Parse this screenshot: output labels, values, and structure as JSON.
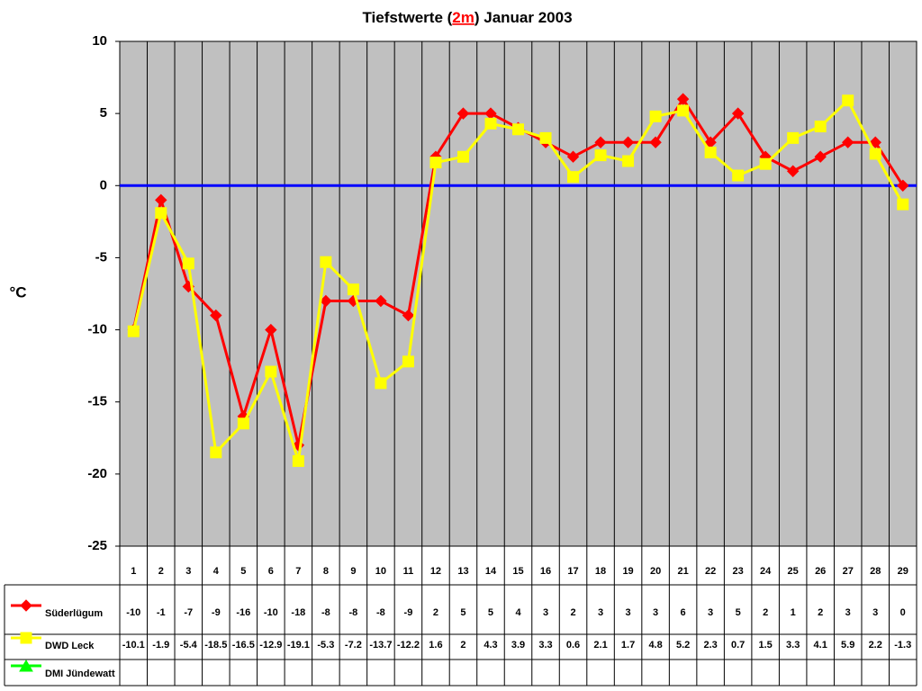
{
  "chart_data": {
    "type": "line",
    "title": [
      "Tiefstwerte (",
      "2m",
      ") Januar 2003"
    ],
    "y_label": "°C",
    "categories": [
      "1",
      "2",
      "3",
      "4",
      "5",
      "6",
      "7",
      "8",
      "9",
      "10",
      "11",
      "12",
      "13",
      "14",
      "15",
      "16",
      "17",
      "18",
      "19",
      "20",
      "21",
      "22",
      "23",
      "24",
      "25",
      "26",
      "27",
      "28",
      "29"
    ],
    "series": [
      {
        "name": "Süderlügum",
        "color": "#ff0000",
        "marker": "diamond",
        "values": [
          -10,
          -1,
          -7,
          -9,
          -16,
          -10,
          -18,
          -8,
          -8,
          -8,
          -9,
          2,
          5,
          5,
          4,
          3,
          2,
          3,
          3,
          3,
          6,
          3,
          5,
          2,
          1,
          2,
          3,
          3,
          0
        ]
      },
      {
        "name": "DWD Leck",
        "color": "#ffff00",
        "marker": "square",
        "values": [
          -10.1,
          -1.9,
          -5.4,
          -18.5,
          -16.5,
          -12.9,
          -19.1,
          -5.3,
          -7.2,
          -13.7,
          -12.2,
          1.6,
          2,
          4.3,
          3.9,
          3.3,
          0.6,
          2.1,
          1.7,
          4.8,
          5.2,
          2.3,
          0.7,
          1.5,
          3.3,
          4.1,
          5.9,
          2.2,
          -1.3
        ]
      },
      {
        "name": "DMI Jündewatt",
        "color": "#00ff00",
        "marker": "triangle",
        "values": [
          null,
          null,
          null,
          null,
          null,
          null,
          null,
          null,
          null,
          null,
          null,
          null,
          null,
          null,
          null,
          null,
          null,
          null,
          null,
          null,
          null,
          null,
          null,
          null,
          null,
          null,
          null,
          null,
          null
        ]
      }
    ],
    "ylim": [
      -25,
      10
    ],
    "yticks": [
      10,
      5,
      0,
      -5,
      -10,
      -15,
      -20,
      -25
    ],
    "zero_line_color": "#0000ff",
    "plot_background": "#c0c0c0"
  }
}
